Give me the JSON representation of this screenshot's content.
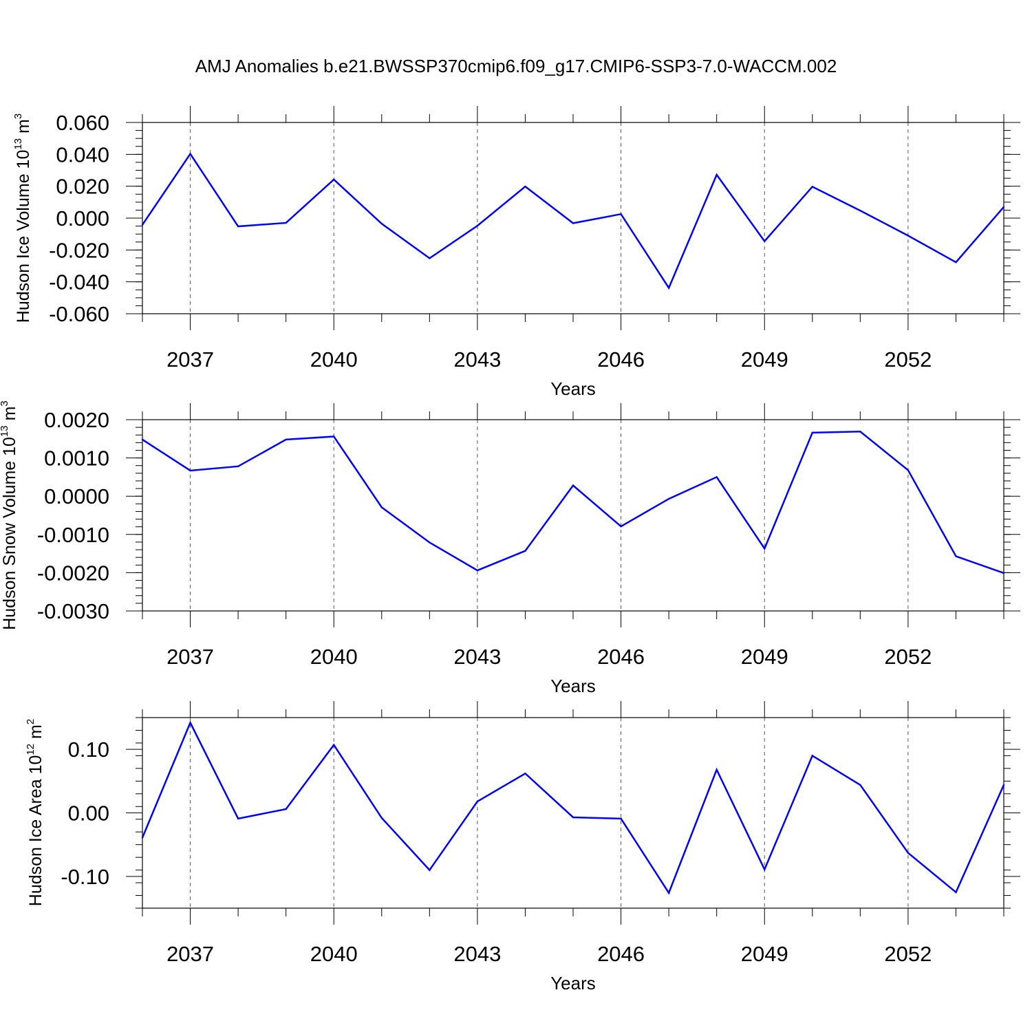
{
  "title": "AMJ Anomalies b.e21.BWSSP370cmip6.f09_g17.CMIP6-SSP3-7.0-WACCM.002",
  "colors": {
    "series": "#0000ff",
    "axis": "#000000",
    "grid": "#555555"
  },
  "chart_data": [
    {
      "type": "line",
      "ylabel": {
        "text": "Hudson Ice Volume 10",
        "exp": "13",
        "unit": " m",
        "unit_exp": "3"
      },
      "xlabel": "Years",
      "xlim": [
        2036,
        2054
      ],
      "ylim": [
        -0.06,
        0.06
      ],
      "yticks": [
        0.06,
        0.04,
        0.02,
        0.0,
        -0.02,
        -0.04,
        -0.06
      ],
      "ytick_labels": [
        "0.060",
        "0.040",
        "0.020",
        "0.000",
        "-0.020",
        "-0.040",
        "-0.060"
      ],
      "xticks": [
        2037,
        2040,
        2043,
        2046,
        2049,
        2052
      ],
      "xtick_labels": [
        "2037",
        "2040",
        "2043",
        "2046",
        "2049",
        "2052"
      ],
      "grid": "vertical dashed at major x ticks",
      "x": [
        2036,
        2037,
        2038,
        2039,
        2040,
        2041,
        2042,
        2043,
        2044,
        2045,
        2046,
        2047,
        2048,
        2049,
        2050,
        2051,
        2052,
        2053,
        2054
      ],
      "series": [
        {
          "values": [
            -0.0042,
            0.0403,
            -0.0052,
            -0.003,
            0.0242,
            -0.0035,
            -0.0252,
            -0.0048,
            0.0198,
            -0.0032,
            0.0025,
            -0.0438,
            0.0272,
            -0.0145,
            0.0197,
            0.0047,
            -0.011,
            -0.0277,
            0.007
          ]
        }
      ]
    },
    {
      "type": "line",
      "ylabel": {
        "text": "Hudson Snow Volume 10",
        "exp": "13",
        "unit": " m",
        "unit_exp": "3"
      },
      "xlabel": "Years",
      "xlim": [
        2036,
        2054
      ],
      "ylim": [
        -0.003,
        0.002
      ],
      "yticks": [
        0.002,
        0.001,
        0.0,
        -0.001,
        -0.002,
        -0.003
      ],
      "ytick_labels": [
        "0.0020",
        "0.0010",
        "0.0000",
        "-0.0010",
        "-0.0020",
        "-0.0030"
      ],
      "xticks": [
        2037,
        2040,
        2043,
        2046,
        2049,
        2052
      ],
      "xtick_labels": [
        "2037",
        "2040",
        "2043",
        "2046",
        "2049",
        "2052"
      ],
      "grid": "vertical dashed at major x ticks",
      "x": [
        2036,
        2037,
        2038,
        2039,
        2040,
        2041,
        2042,
        2043,
        2044,
        2045,
        2046,
        2047,
        2048,
        2049,
        2050,
        2051,
        2052,
        2053,
        2054
      ],
      "series": [
        {
          "values": [
            0.00148,
            0.00067,
            0.00078,
            0.00148,
            0.00156,
            -0.00029,
            -0.00121,
            -0.00194,
            -0.00143,
            0.00028,
            -0.00079,
            -7e-05,
            0.0005,
            -0.00137,
            0.00166,
            0.00169,
            0.00068,
            -0.00157,
            -0.00201
          ]
        }
      ]
    },
    {
      "type": "line",
      "ylabel": {
        "text": "Hudson Ice Area 10",
        "exp": "12",
        "unit": " m",
        "unit_exp": "2"
      },
      "xlabel": "Years",
      "xlim": [
        2036,
        2054
      ],
      "ylim": [
        -0.15,
        0.15
      ],
      "yticks": [
        0.1,
        0.0,
        -0.1
      ],
      "ytick_labels": [
        "0.10",
        "0.00",
        "-0.10"
      ],
      "xticks": [
        2037,
        2040,
        2043,
        2046,
        2049,
        2052
      ],
      "xtick_labels": [
        "2037",
        "2040",
        "2043",
        "2046",
        "2049",
        "2052"
      ],
      "grid": "vertical dashed at major x ticks",
      "x": [
        2036,
        2037,
        2038,
        2039,
        2040,
        2041,
        2042,
        2043,
        2044,
        2045,
        2046,
        2047,
        2048,
        2049,
        2050,
        2051,
        2052,
        2053,
        2054
      ],
      "series": [
        {
          "values": [
            -0.039,
            0.142,
            -0.009,
            0.006,
            0.107,
            -0.008,
            -0.09,
            0.018,
            0.062,
            -0.007,
            -0.009,
            -0.126,
            0.068,
            -0.089,
            0.09,
            0.044,
            -0.063,
            -0.125,
            0.044
          ]
        }
      ]
    }
  ]
}
